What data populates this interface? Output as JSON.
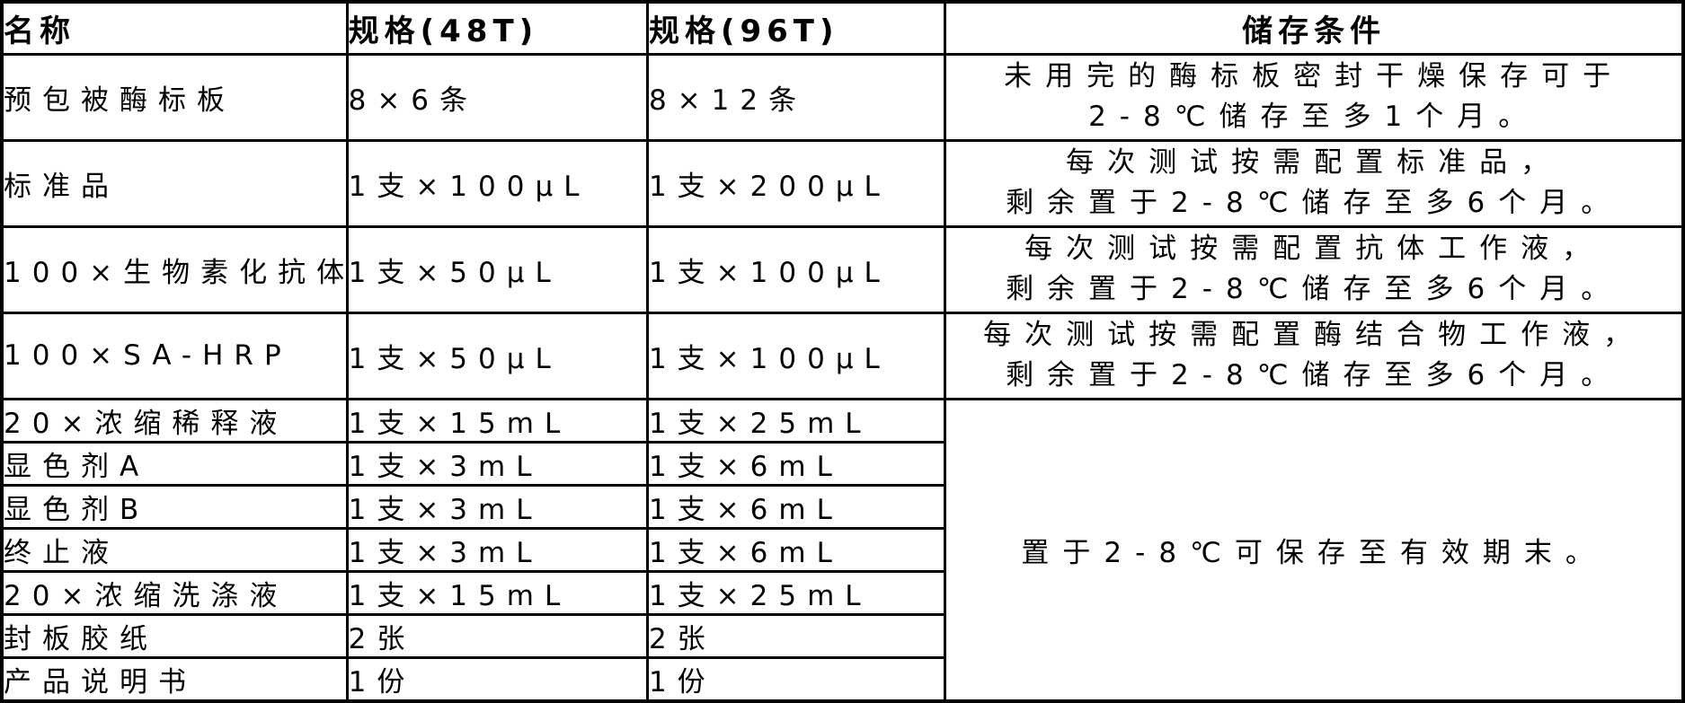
{
  "colors": {
    "border": "#000000",
    "text": "#000000",
    "background": "#ffffff"
  },
  "table": {
    "columns": {
      "name": "名称",
      "spec48": "规格(48T)",
      "spec96": "规格(96T)",
      "storage": "储存条件"
    },
    "rows": [
      {
        "name": "预包被酶标板",
        "spec48": "8×6条",
        "spec96": "8×12条",
        "storage_lines": [
          "未用完的酶标板密封干燥保存可于",
          "2-8℃储存至多1个月。"
        ]
      },
      {
        "name": "标准品",
        "spec48": "1支×100µL",
        "spec96": "1支×200µL",
        "storage_lines": [
          "每次测试按需配置标准品，",
          "剩余置于2-8℃储存至多6个月。"
        ]
      },
      {
        "name": "100×生物素化抗体",
        "spec48": "1支×50µL",
        "spec96": "1支×100µL",
        "storage_lines": [
          "每次测试按需配置抗体工作液，",
          "剩余置于2-8℃储存至多6个月。"
        ]
      },
      {
        "name": "100×SA-HRP",
        "spec48": "1支×50µL",
        "spec96": "1支×100µL",
        "storage_lines": [
          "每次测试按需配置酶结合物工作液，",
          "剩余置于2-8℃储存至多6个月。"
        ]
      },
      {
        "name": "20×浓缩稀释液",
        "spec48": "1支×15mL",
        "spec96": "1支×25mL"
      },
      {
        "name": "显色剂A",
        "spec48": "1支×3mL",
        "spec96": "1支×6mL"
      },
      {
        "name": "显色剂B",
        "spec48": "1支×3mL",
        "spec96": "1支×6mL"
      },
      {
        "name": "终止液",
        "spec48": "1支×3mL",
        "spec96": "1支×6mL"
      },
      {
        "name": "20×浓缩洗涤液",
        "spec48": "1支×15mL",
        "spec96": "1支×25mL"
      },
      {
        "name": "封板胶纸",
        "spec48": "2张",
        "spec96": "2张"
      },
      {
        "name": "产品说明书",
        "spec48": "1份",
        "spec96": "1份"
      }
    ],
    "merged_storage": "置于2-8℃可保存至有效期末。"
  }
}
